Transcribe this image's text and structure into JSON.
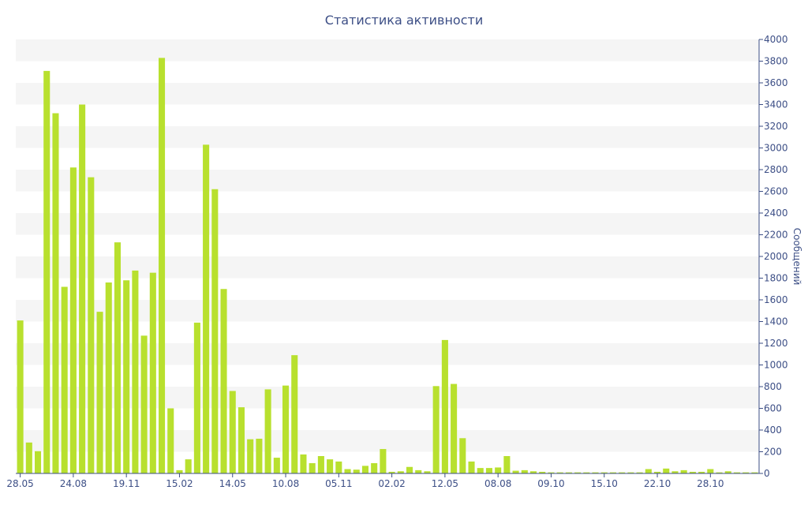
{
  "chart_data": {
    "type": "bar",
    "title": "Статистика активности",
    "xlabel": "",
    "ylabel": "Сообщений",
    "ylim": [
      0,
      4000
    ],
    "y_ticks": [
      0,
      200,
      400,
      600,
      800,
      1000,
      1200,
      1400,
      1600,
      1800,
      2000,
      2200,
      2400,
      2600,
      2800,
      3000,
      3200,
      3400,
      3600,
      3800,
      4000
    ],
    "x_tick_labels": [
      {
        "label": "28.05",
        "index": 0
      },
      {
        "label": "24.08",
        "index": 6
      },
      {
        "label": "19.11",
        "index": 12
      },
      {
        "label": "15.02",
        "index": 18
      },
      {
        "label": "14.05",
        "index": 24
      },
      {
        "label": "10.08",
        "index": 30
      },
      {
        "label": "05.11",
        "index": 36
      },
      {
        "label": "02.02",
        "index": 42
      },
      {
        "label": "12.05",
        "index": 48
      },
      {
        "label": "08.08",
        "index": 54
      },
      {
        "label": "09.10",
        "index": 60
      },
      {
        "label": "15.10",
        "index": 66
      },
      {
        "label": "22.10",
        "index": 72
      },
      {
        "label": "28.10",
        "index": 78
      }
    ],
    "values": [
      1410,
      285,
      205,
      3710,
      3320,
      1720,
      2820,
      3400,
      2730,
      1490,
      1760,
      2130,
      1780,
      1870,
      1270,
      1850,
      3830,
      600,
      30,
      130,
      1390,
      3030,
      2620,
      1700,
      760,
      610,
      315,
      320,
      775,
      145,
      810,
      1090,
      175,
      95,
      160,
      130,
      110,
      40,
      35,
      70,
      95,
      225,
      15,
      20,
      60,
      30,
      20,
      805,
      1230,
      825,
      325,
      110,
      50,
      50,
      55,
      160,
      25,
      30,
      20,
      15,
      10,
      10,
      10,
      10,
      10,
      10,
      10,
      10,
      10,
      10,
      10,
      40,
      15,
      45,
      20,
      30,
      15,
      15,
      40,
      10,
      20,
      10,
      10,
      10
    ],
    "bar_color": "#b8e02e",
    "band_color": "#f5f5f5",
    "axis_color": "#3d4f86",
    "grid": "horizontal bands"
  }
}
